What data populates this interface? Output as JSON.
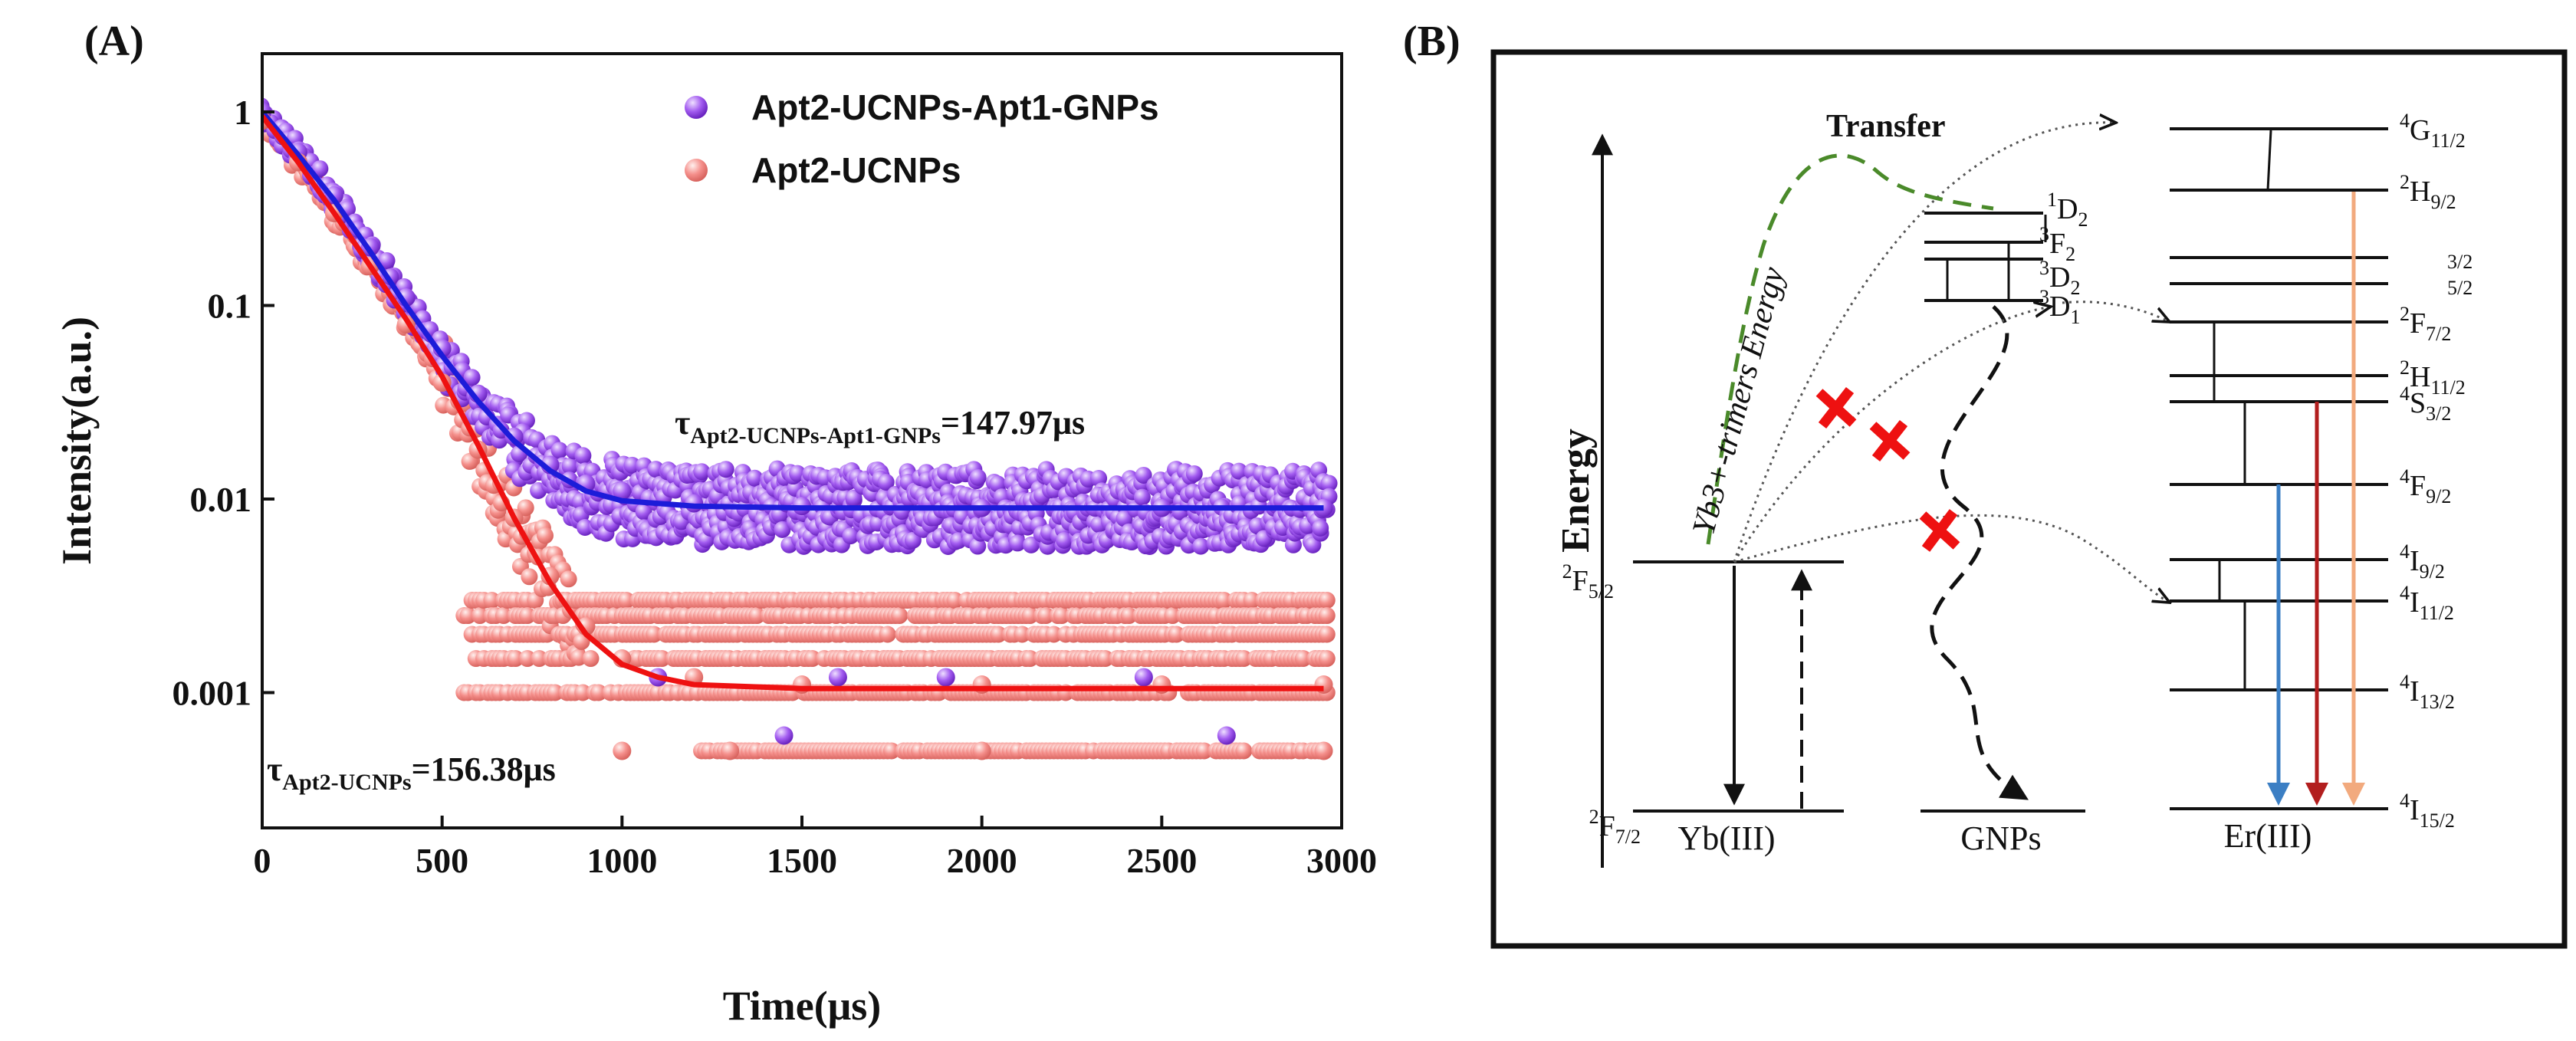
{
  "colors": {
    "purple_marker": "#a35cf0",
    "pink_marker": "#f5908c",
    "fit_blue": "#1c1cd9",
    "fit_red": "#ee1111",
    "green_dash": "#4a8a2a",
    "cross_red": "#ee1111",
    "arrow_blue": "#3c7fc4",
    "arrow_darkred": "#b21e1e",
    "arrow_peach": "#f2aa7e"
  },
  "chart_data": [
    {
      "panel_label": "(A)",
      "type": "scatter",
      "xlabel": "Time(μs)",
      "ylabel": "Intensity(a.u.)",
      "xlim": [
        0,
        3000
      ],
      "ylim": [
        0.0002,
        2
      ],
      "yscale": "log",
      "xticks": [
        0,
        500,
        1000,
        1500,
        2000,
        2500,
        3000
      ],
      "xtick_labels": [
        "0",
        "500",
        "1000",
        "1500",
        "2000",
        "2500",
        "3000"
      ],
      "yticks": [
        1,
        0.1,
        0.01,
        0.001
      ],
      "ytick_labels": [
        "1",
        "0.1",
        "0.01",
        "0.001"
      ],
      "legend_position": "top-right",
      "series": [
        {
          "name": "Apt2-UCNPs-Apt1-GNPs",
          "color": "#a35cf0",
          "marker": "sphere",
          "points": [
            [
              0,
              1.0
            ],
            [
              100,
              0.62
            ],
            [
              200,
              0.37
            ],
            [
              300,
              0.2
            ],
            [
              400,
              0.11
            ],
            [
              500,
              0.06
            ],
            [
              600,
              0.035
            ],
            [
              700,
              0.021
            ],
            [
              800,
              0.015
            ],
            [
              900,
              0.012
            ],
            [
              1000,
              0.011
            ],
            [
              1200,
              0.0095
            ],
            [
              1500,
              0.0092
            ],
            [
              2000,
              0.009
            ],
            [
              2500,
              0.009
            ],
            [
              2950,
              0.009
            ],
            [
              1100,
              0.0012
            ],
            [
              1450,
              0.0006
            ],
            [
              1600,
              0.0012
            ],
            [
              1900,
              0.0012
            ],
            [
              2450,
              0.0012
            ],
            [
              2680,
              0.0006
            ]
          ],
          "fit": {
            "color": "#1c1cd9",
            "decay_x": [
              0,
              100,
              200,
              300,
              400,
              500,
              600,
              700,
              800,
              900,
              1000,
              1200,
              1500,
              2000,
              2500,
              2950
            ],
            "decay_y": [
              1.0,
              0.6,
              0.35,
              0.19,
              0.1,
              0.055,
              0.032,
              0.02,
              0.014,
              0.011,
              0.0098,
              0.0092,
              0.009,
              0.009,
              0.009,
              0.009
            ]
          }
        },
        {
          "name": "Apt2-UCNPs",
          "color": "#f5908c",
          "marker": "sphere",
          "points": [
            [
              0,
              0.9
            ],
            [
              100,
              0.55
            ],
            [
              200,
              0.3
            ],
            [
              300,
              0.16
            ],
            [
              400,
              0.08
            ],
            [
              500,
              0.04
            ],
            [
              600,
              0.018
            ],
            [
              700,
              0.008
            ],
            [
              800,
              0.004
            ],
            [
              900,
              0.0022
            ],
            [
              1000,
              0.0015
            ],
            [
              1200,
              0.0012
            ],
            [
              1500,
              0.0011
            ],
            [
              2000,
              0.0011
            ],
            [
              2500,
              0.0011
            ],
            [
              2950,
              0.0011
            ],
            [
              1000,
              0.0005
            ],
            [
              1300,
              0.0005
            ],
            [
              2000,
              0.0005
            ],
            [
              2950,
              0.0005
            ]
          ],
          "fit": {
            "color": "#ee1111",
            "decay_x": [
              0,
              100,
              200,
              300,
              400,
              500,
              600,
              700,
              800,
              900,
              1000,
              1100,
              1200,
              1500,
              2000,
              2500,
              2950
            ],
            "decay_y": [
              0.95,
              0.55,
              0.3,
              0.16,
              0.085,
              0.043,
              0.019,
              0.008,
              0.0037,
              0.002,
              0.0014,
              0.0012,
              0.0011,
              0.00105,
              0.00105,
              0.00105,
              0.00105
            ]
          }
        }
      ],
      "annotations": [
        {
          "main": "τ",
          "sub": "Apt2-UCNPs-Apt1-GNPs",
          "value": "=147.97μs"
        },
        {
          "main": "τ",
          "sub": "Apt2-UCNPs",
          "value": "=156.38μs"
        }
      ]
    },
    {
      "panel_label": "(B)",
      "type": "diagram",
      "axis_label": "Energy",
      "columns": [
        "Yb(III)",
        "GNPs",
        "Er(III)"
      ],
      "yb_levels": [
        {
          "pre": "2",
          "sym": "F",
          "sub": "5/2"
        },
        {
          "pre": "2",
          "sym": "F",
          "sub": "7/2"
        }
      ],
      "gnp_levels": [
        {
          "pre": "1",
          "sym": "D",
          "sub": "2"
        },
        {
          "pre": "3",
          "sym": "F",
          "sub": "2"
        },
        {
          "pre": "3",
          "sym": "D",
          "sub": "2"
        },
        {
          "pre": "3",
          "sym": "D",
          "sub": "1"
        }
      ],
      "er_levels": [
        {
          "pre": "4",
          "sym": "G",
          "sub": "11/2"
        },
        {
          "pre": "2",
          "sym": "H",
          "sub": "9/2"
        },
        {
          "pre": "",
          "sym": "",
          "sub": "3/2"
        },
        {
          "pre": "",
          "sym": "",
          "sub": "5/2"
        },
        {
          "pre": "2",
          "sym": "F",
          "sub": "7/2"
        },
        {
          "pre": "2",
          "sym": "H",
          "sub": "11/2"
        },
        {
          "pre": "4",
          "sym": "S",
          "sub": "3/2"
        },
        {
          "pre": "4",
          "sym": "F",
          "sub": "9/2"
        },
        {
          "pre": "4",
          "sym": "I",
          "sub": "9/2"
        },
        {
          "pre": "4",
          "sym": "I",
          "sub": "11/2"
        },
        {
          "pre": "4",
          "sym": "I",
          "sub": "13/2"
        },
        {
          "pre": "4",
          "sym": "I",
          "sub": "15/2"
        }
      ],
      "energy_transfer_label": "Yb3+-trimers Energy",
      "transfer_label": "Transfer",
      "blocked_transfers": 3
    }
  ]
}
